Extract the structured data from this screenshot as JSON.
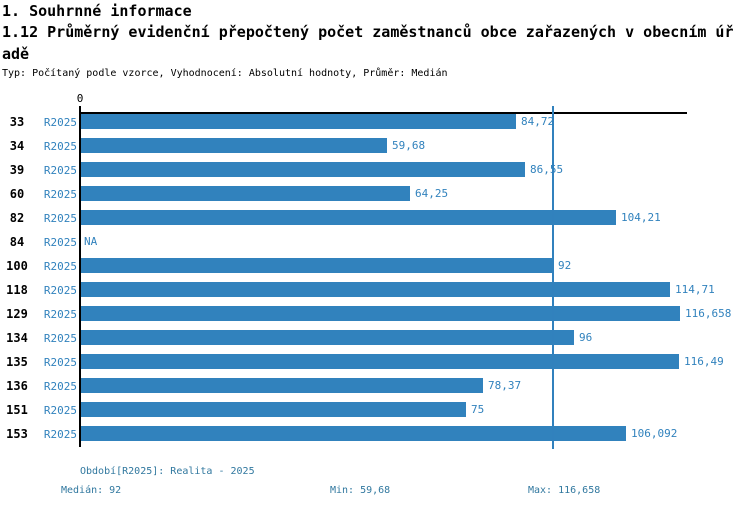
{
  "header": {
    "title": "1. Souhrnné informace",
    "subtitle": "1.12 Průměrný evidenční přepočtený počet zaměstnanců obce zařazených v obecním úřadě",
    "meta": "Typ: Počítaný podle vzorce, Vyhodnocení: Absolutní hodnoty, Průměr: Medián"
  },
  "chart_data": {
    "type": "bar",
    "orientation": "horizontal",
    "title": "1.12 Průměrný evidenční přepočtený počet zaměstnanců obce zařazených v obecním úřadě",
    "series_label": "R2025",
    "categories": [
      "33",
      "34",
      "39",
      "60",
      "82",
      "84",
      "100",
      "118",
      "129",
      "134",
      "135",
      "136",
      "151",
      "153"
    ],
    "values": [
      84.72,
      59.68,
      86.55,
      64.25,
      104.21,
      null,
      92,
      114.71,
      116.658,
      96,
      116.49,
      78.37,
      75,
      106.092
    ],
    "value_labels": [
      "84,72",
      "59,68",
      "86,55",
      "64,25",
      "104,21",
      "NA",
      "92",
      "114,71",
      "116,658",
      "96",
      "116,49",
      "78,37",
      "75",
      "106,092"
    ],
    "axis_zero_label": "0",
    "xlim": [
      0,
      118
    ],
    "median_line_value": 92,
    "legend_position": "none",
    "grid": false,
    "bar_color": "#3182bd",
    "median_line_color": "#3182bd",
    "axis_color": "#000000"
  },
  "footer": {
    "period": "Období[R2025]: Realita - 2025",
    "median": "Medián: 92",
    "min": "Min: 59,68",
    "max": "Max: 116,658"
  }
}
